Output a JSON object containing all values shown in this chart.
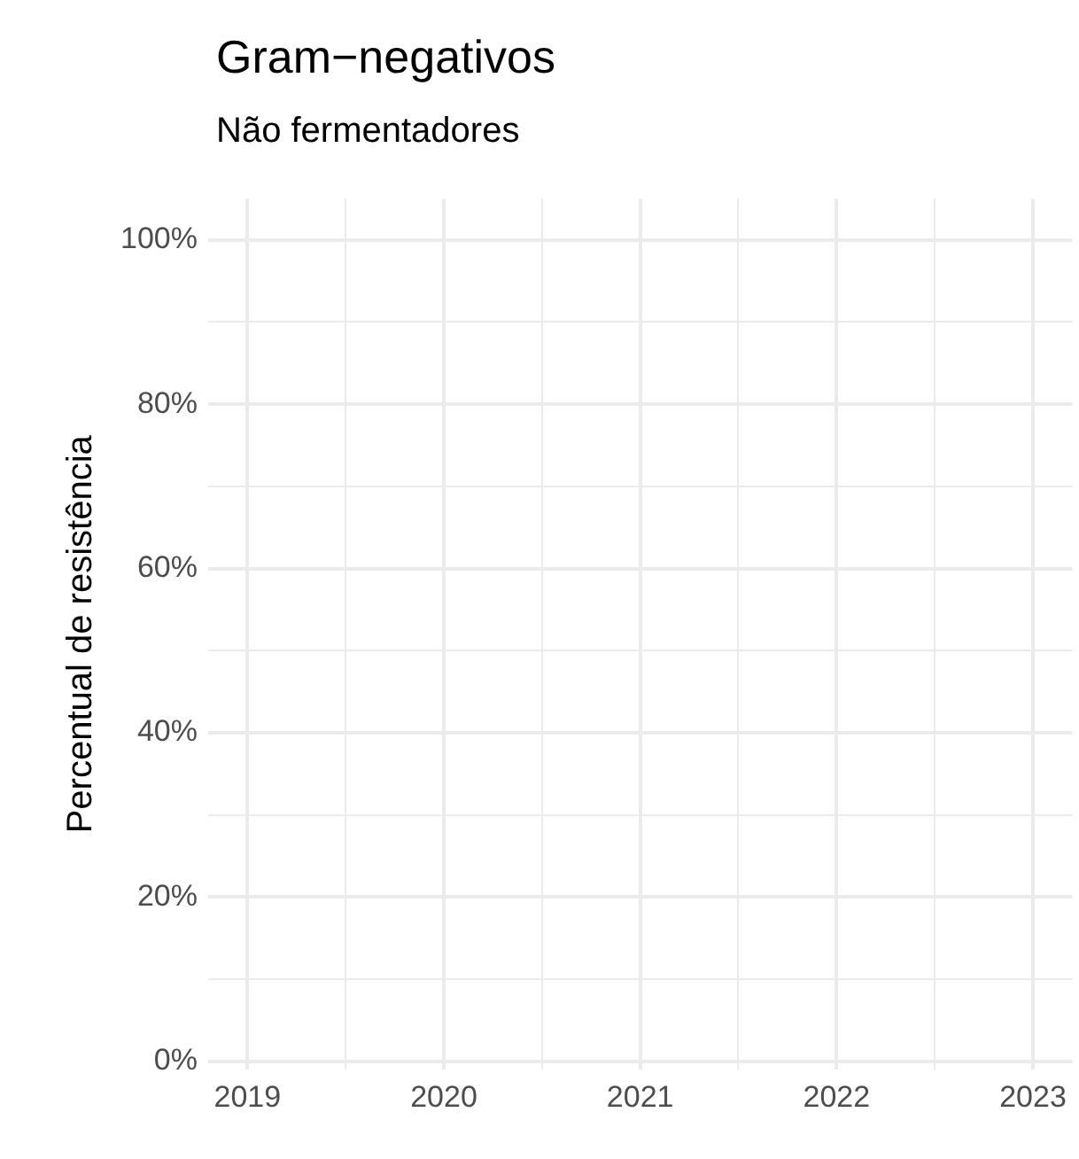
{
  "chart_data": {
    "type": "line",
    "title": "Gram−negativos",
    "subtitle": "Não fermentadores",
    "ylabel": "Percentual de resistência",
    "xlim": [
      2018.8,
      2023.2
    ],
    "xticks": [
      2019,
      {
        "value": 2019.5,
        "label": null
      },
      2020,
      {
        "value": 2020.5,
        "label": null
      },
      2021,
      {
        "value": 2021.5,
        "label": null
      },
      2022,
      {
        "value": 2022.5,
        "label": null
      },
      2023
    ],
    "ylim": [
      -1,
      105
    ],
    "yticks": [
      {
        "value": 0,
        "label": "0%"
      },
      {
        "value": 10,
        "label": null
      },
      {
        "value": 20,
        "label": "20%"
      },
      {
        "value": 30,
        "label": null
      },
      {
        "value": 40,
        "label": "40%"
      },
      {
        "value": 50,
        "label": null
      },
      {
        "value": 60,
        "label": "60%"
      },
      {
        "value": 70,
        "label": null
      },
      {
        "value": 80,
        "label": "80%"
      },
      {
        "value": 90,
        "label": null
      },
      {
        "value": 100,
        "label": "100%"
      }
    ],
    "grid": true
  }
}
